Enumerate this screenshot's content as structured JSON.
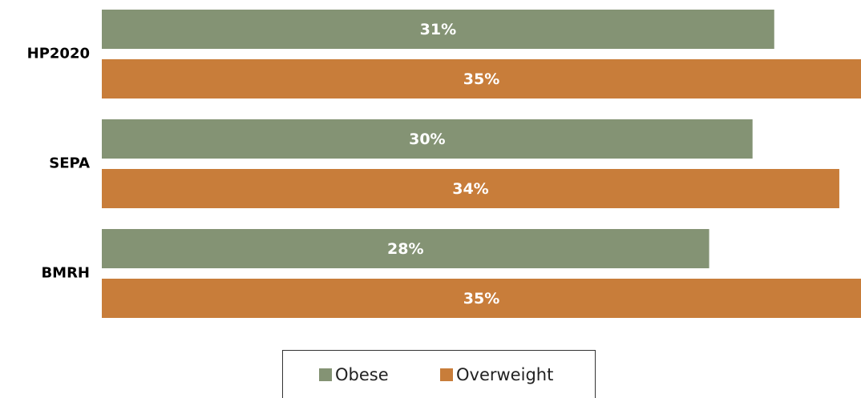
{
  "chart_data": {
    "type": "bar",
    "orientation": "horizontal",
    "categories": [
      "HP2020",
      "SEPA",
      "BMRH"
    ],
    "series": [
      {
        "name": "Obese",
        "color": "#849374",
        "values": [
          31,
          30,
          28
        ],
        "value_labels": [
          "31%",
          "30%",
          "28%"
        ]
      },
      {
        "name": "Overweight",
        "color": "#c87d3a",
        "values": [
          35,
          34,
          35
        ],
        "value_labels": [
          "35%",
          "34%",
          "35%"
        ]
      }
    ],
    "legend": "bottom"
  }
}
